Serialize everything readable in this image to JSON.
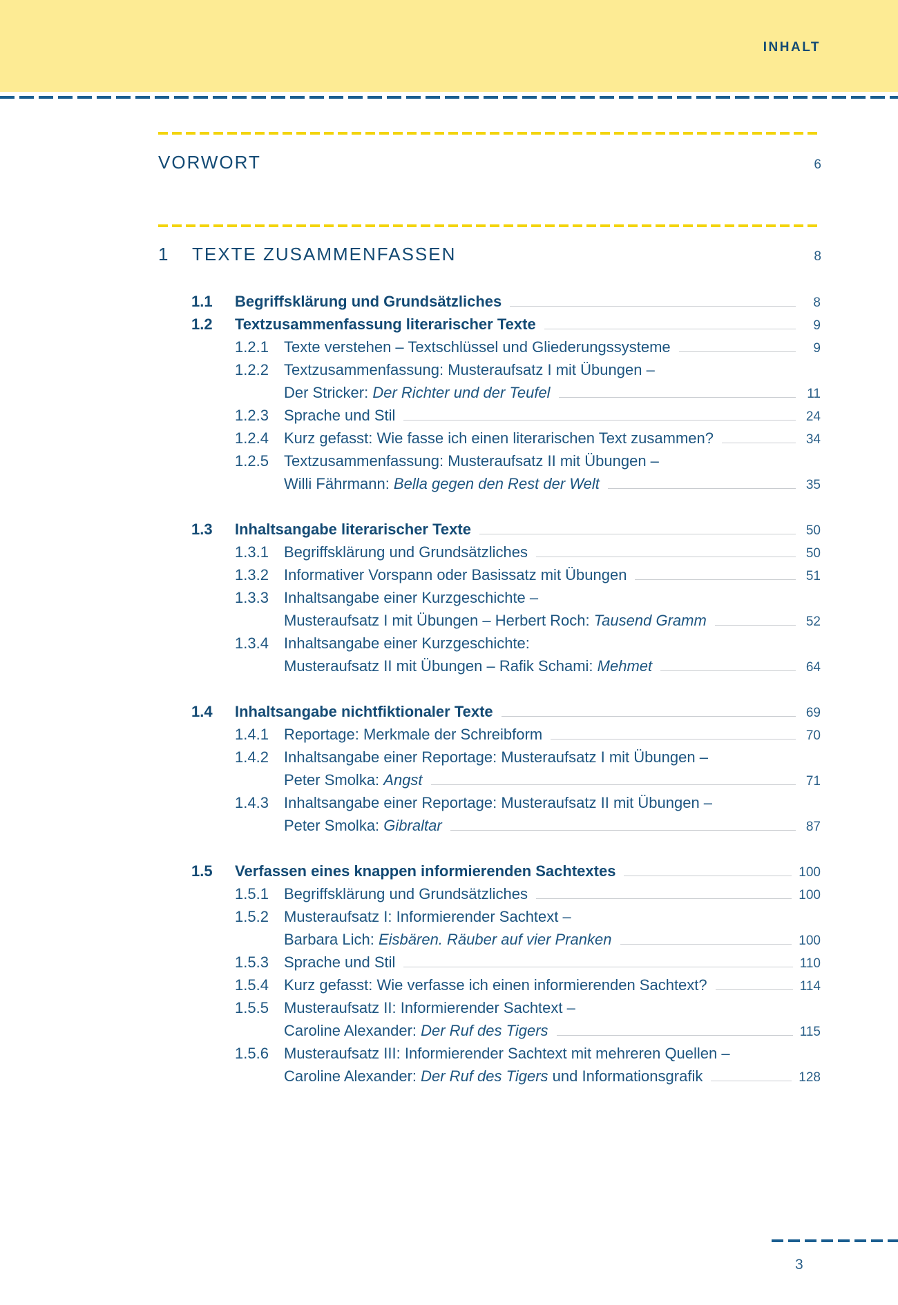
{
  "header": {
    "title": "INHALT"
  },
  "colors": {
    "header_bg": "#fdeb94",
    "rule_blue": "#1a5e90",
    "rule_yellow": "#f3d40c",
    "text": "#134a74"
  },
  "vorwort": {
    "title": "VORWORT",
    "page": "6"
  },
  "chapter": {
    "number": "1",
    "title": "TEXTE ZUSAMMENFASSEN",
    "page": "8"
  },
  "entries": [
    {
      "level": 1,
      "number": "1.1",
      "lines": [
        [
          {
            "t": "Begriffsklärung und Grundsätzliches"
          }
        ]
      ],
      "page": "8"
    },
    {
      "level": 1,
      "number": "1.2",
      "lines": [
        [
          {
            "t": "Textzusammenfassung literarischer Texte"
          }
        ]
      ],
      "page": "9"
    },
    {
      "level": 2,
      "number": "1.2.1",
      "lines": [
        [
          {
            "t": "Texte verstehen – Textschlüssel und Gliederungssysteme"
          }
        ]
      ],
      "page": "9"
    },
    {
      "level": 2,
      "number": "1.2.2",
      "lines": [
        [
          {
            "t": "Textzusammenfassung: Musteraufsatz I mit Übungen –"
          }
        ],
        [
          {
            "t": "Der Stricker: "
          },
          {
            "t": "Der Richter und der Teufel",
            "i": true
          }
        ]
      ],
      "page": "11"
    },
    {
      "level": 2,
      "number": "1.2.3",
      "lines": [
        [
          {
            "t": "Sprache und Stil"
          }
        ]
      ],
      "page": "24"
    },
    {
      "level": 2,
      "number": "1.2.4",
      "lines": [
        [
          {
            "t": "Kurz gefasst: Wie fasse ich einen literarischen Text zusammen?"
          }
        ]
      ],
      "page": "34"
    },
    {
      "level": 2,
      "number": "1.2.5",
      "lines": [
        [
          {
            "t": "Textzusammenfassung: Musteraufsatz II mit Übungen –"
          }
        ],
        [
          {
            "t": "Willi Fährmann: "
          },
          {
            "t": "Bella gegen den Rest der Welt",
            "i": true
          }
        ]
      ],
      "page": "35"
    },
    {
      "level": 1,
      "gap": true,
      "number": "1.3",
      "lines": [
        [
          {
            "t": "Inhaltsangabe literarischer Texte"
          }
        ]
      ],
      "page": "50"
    },
    {
      "level": 2,
      "number": "1.3.1",
      "lines": [
        [
          {
            "t": "Begriffsklärung und Grundsätzliches"
          }
        ]
      ],
      "page": "50"
    },
    {
      "level": 2,
      "number": "1.3.2",
      "lines": [
        [
          {
            "t": "Informativer Vorspann oder Basissatz mit Übungen"
          }
        ]
      ],
      "page": "51"
    },
    {
      "level": 2,
      "number": "1.3.3",
      "lines": [
        [
          {
            "t": "Inhaltsangabe einer Kurzgeschichte –"
          }
        ],
        [
          {
            "t": "Musteraufsatz I mit Übungen – Herbert Roch: "
          },
          {
            "t": "Tausend Gramm",
            "i": true
          }
        ]
      ],
      "page": "52"
    },
    {
      "level": 2,
      "number": "1.3.4",
      "lines": [
        [
          {
            "t": "Inhaltsangabe einer Kurzgeschichte:"
          }
        ],
        [
          {
            "t": "Musteraufsatz II mit Übungen – Rafik Schami: "
          },
          {
            "t": "Mehmet",
            "i": true
          }
        ]
      ],
      "page": "64"
    },
    {
      "level": 1,
      "gap": true,
      "number": "1.4",
      "lines": [
        [
          {
            "t": "Inhaltsangabe nichtfiktionaler Texte"
          }
        ]
      ],
      "page": "69"
    },
    {
      "level": 2,
      "number": "1.4.1",
      "lines": [
        [
          {
            "t": "Reportage: Merkmale der Schreibform"
          }
        ]
      ],
      "page": "70"
    },
    {
      "level": 2,
      "number": "1.4.2",
      "lines": [
        [
          {
            "t": "Inhaltsangabe einer Reportage: Musteraufsatz I mit Übungen –"
          }
        ],
        [
          {
            "t": "Peter Smolka: "
          },
          {
            "t": "Angst",
            "i": true
          }
        ]
      ],
      "page": "71"
    },
    {
      "level": 2,
      "number": "1.4.3",
      "lines": [
        [
          {
            "t": "Inhaltsangabe einer Reportage: Musteraufsatz II mit Übungen –"
          }
        ],
        [
          {
            "t": "Peter Smolka: "
          },
          {
            "t": "Gibraltar",
            "i": true
          }
        ]
      ],
      "page": "87"
    },
    {
      "level": 1,
      "gap": true,
      "number": "1.5",
      "lines": [
        [
          {
            "t": "Verfassen eines knappen informierenden Sachtextes"
          }
        ]
      ],
      "page": "100"
    },
    {
      "level": 2,
      "number": "1.5.1",
      "lines": [
        [
          {
            "t": "Begriffsklärung und Grundsätzliches"
          }
        ]
      ],
      "page": "100"
    },
    {
      "level": 2,
      "number": "1.5.2",
      "lines": [
        [
          {
            "t": "Musteraufsatz I: Informierender Sachtext –"
          }
        ],
        [
          {
            "t": "Barbara Lich: "
          },
          {
            "t": "Eisbären. Räuber auf vier Pranken",
            "i": true
          }
        ]
      ],
      "page": "100"
    },
    {
      "level": 2,
      "number": "1.5.3",
      "lines": [
        [
          {
            "t": "Sprache und Stil"
          }
        ]
      ],
      "page": "110"
    },
    {
      "level": 2,
      "number": "1.5.4",
      "lines": [
        [
          {
            "t": "Kurz gefasst: Wie verfasse ich einen informierenden Sachtext?"
          }
        ]
      ],
      "page": "114"
    },
    {
      "level": 2,
      "number": "1.5.5",
      "lines": [
        [
          {
            "t": "Musteraufsatz II: Informierender Sachtext –"
          }
        ],
        [
          {
            "t": "Caroline Alexander: "
          },
          {
            "t": "Der Ruf des Tigers",
            "i": true
          }
        ]
      ],
      "page": "115"
    },
    {
      "level": 2,
      "number": "1.5.6",
      "lines": [
        [
          {
            "t": "Musteraufsatz III: Informierender Sachtext mit mehreren Quellen –"
          }
        ],
        [
          {
            "t": "Caroline Alexander: "
          },
          {
            "t": "Der Ruf des Tigers",
            "i": true
          },
          {
            "t": " und Informationsgrafik"
          }
        ]
      ],
      "page": "128"
    }
  ],
  "footer": {
    "page_number": "3"
  }
}
